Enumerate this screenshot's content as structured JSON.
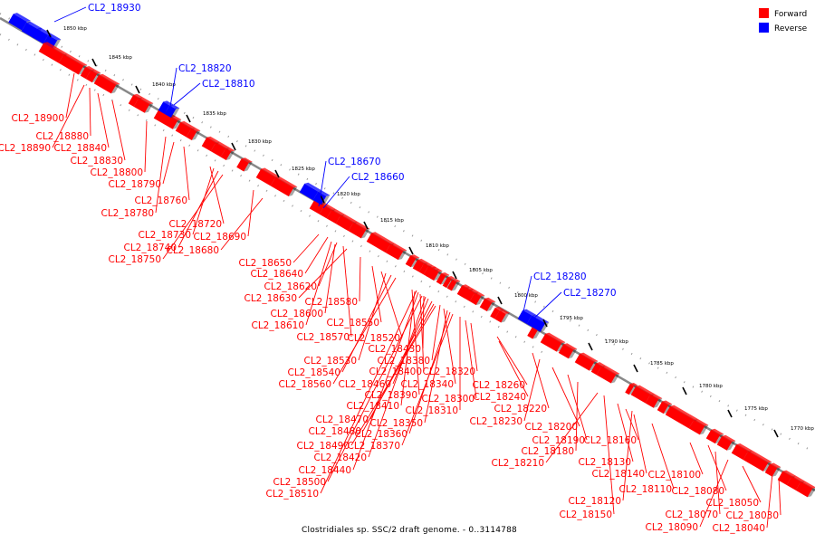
{
  "caption": "Clostridiales sp. SSC/2 draft genome. - 0..3114788",
  "legend": [
    {
      "label": "Forward",
      "color": "#ff0000"
    },
    {
      "label": "Reverse",
      "color": "#0000ff"
    }
  ],
  "colors": {
    "forward": "#ff0000",
    "reverse": "#0000ff",
    "axis": "#888888",
    "dots": "#999999"
  },
  "ticks": [
    "1850 kbp",
    "1845 kbp",
    "1840 kbp",
    "1835 kbp",
    "1830 kbp",
    "1825 kbp",
    "1820 kbp",
    "1815 kbp",
    "1810 kbp",
    "1805 kbp",
    "1800 kbp",
    "1795 kbp",
    "1790 kbp",
    "1785 kbp",
    "1780 kbp",
    "1775 kbp",
    "1770 kbp"
  ],
  "labels": [
    "CL2_18930",
    "CL2_18820",
    "CL2_18810",
    "CL2_18670",
    "CL2_18660",
    "CL2_18280",
    "CL2_18270",
    "CL2_18900",
    "CL2_18880",
    "CL2_18890",
    "CL2_18840",
    "CL2_18830",
    "CL2_18800",
    "CL2_18790",
    "CL2_18760",
    "CL2_18780",
    "CL2_18720",
    "CL2_18730",
    "CL2_18690",
    "CL2_18740",
    "CL2_18680",
    "CL2_18750",
    "CL2_18650",
    "CL2_18640",
    "CL2_18620",
    "CL2_18630",
    "CL2_18580",
    "CL2_18600",
    "CL2_18610",
    "CL2_18550",
    "CL2_18570",
    "CL2_18520",
    "CL2_18430",
    "CL2_18530",
    "CL2_18380",
    "CL2_18540",
    "CL2_18400",
    "CL2_18320",
    "CL2_18560",
    "CL2_18460",
    "CL2_18340",
    "CL2_18260",
    "CL2_18390",
    "CL2_18300",
    "CL2_18240",
    "CL2_18410",
    "CL2_18310",
    "CL2_18220",
    "CL2_18470",
    "CL2_18350",
    "CL2_18230",
    "CL2_18480",
    "CL2_18360",
    "CL2_18200",
    "CL2_18490",
    "CL2_18370",
    "CL2_18190",
    "CL2_18160",
    "CL2_18180",
    "CL2_18420",
    "CL2_18210",
    "CL2_18130",
    "CL2_18440",
    "CL2_18140",
    "CL2_18100",
    "CL2_18500",
    "CL2_18110",
    "CL2_18080",
    "CL2_18510",
    "CL2_18120",
    "CL2_18050",
    "CL2_18150",
    "CL2_18070",
    "CL2_18030",
    "CL2_18090",
    "CL2_18040"
  ]
}
